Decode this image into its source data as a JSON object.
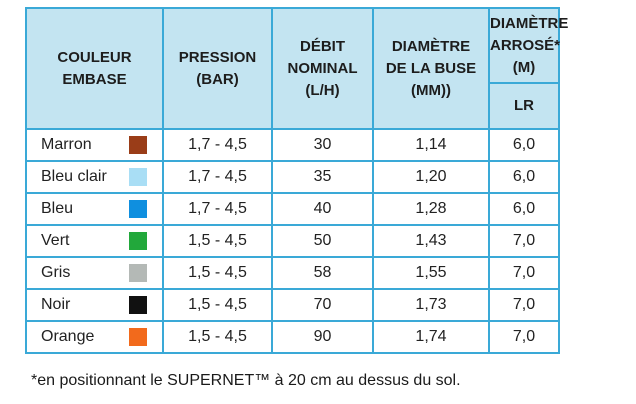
{
  "headers": {
    "couleur": [
      "COULEUR",
      "EMBASE"
    ],
    "pression": [
      "PRESSION",
      "(BAR)"
    ],
    "debit": [
      "DÉBIT",
      "NOMINAL",
      "(L/H)"
    ],
    "diametre_buse": [
      "DIAMÈTRE",
      "DE LA BUSE",
      "(MM))"
    ],
    "diametre_arrose": [
      "DIAMÈTRE",
      "ARROSÉ* (M)"
    ],
    "sub_lr": "LR"
  },
  "rows": [
    {
      "couleur": "Marron",
      "swatch": "#9a3d18",
      "pression": "1,7 - 4,5",
      "debit": "30",
      "diametre_buse": "1,14",
      "lr": "6,0"
    },
    {
      "couleur": "Bleu clair",
      "swatch": "#a9def5",
      "pression": "1,7 - 4,5",
      "debit": "35",
      "diametre_buse": "1,20",
      "lr": "6,0"
    },
    {
      "couleur": "Bleu",
      "swatch": "#0f8fdf",
      "pression": "1,7 - 4,5",
      "debit": "40",
      "diametre_buse": "1,28",
      "lr": "6,0"
    },
    {
      "couleur": "Vert",
      "swatch": "#22a83b",
      "pression": "1,5 - 4,5",
      "debit": "50",
      "diametre_buse": "1,43",
      "lr": "7,0"
    },
    {
      "couleur": "Gris",
      "swatch": "#b4b9b6",
      "pression": "1,5 - 4,5",
      "debit": "58",
      "diametre_buse": "1,55",
      "lr": "7,0"
    },
    {
      "couleur": "Noir",
      "swatch": "#111111",
      "pression": "1,5 - 4,5",
      "debit": "70",
      "diametre_buse": "1,73",
      "lr": "7,0"
    },
    {
      "couleur": "Orange",
      "swatch": "#f26a1c",
      "pression": "1,5 - 4,5",
      "debit": "90",
      "diametre_buse": "1,74",
      "lr": "7,0"
    }
  ],
  "footnote": "*en positionnant le SUPERNET™ à 20 cm au dessus du sol."
}
